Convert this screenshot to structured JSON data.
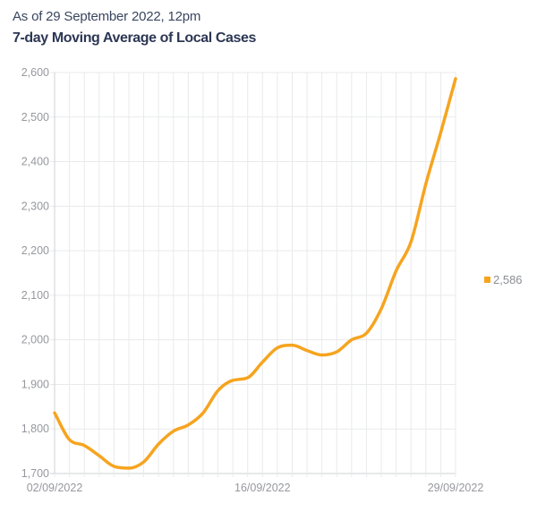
{
  "header": {
    "as_of": "As of 29 September 2022, 12pm",
    "title": "7-day Moving Average of Local Cases"
  },
  "legend": {
    "label": "2,586",
    "swatch_color": "#F6A41F"
  },
  "colors": {
    "line": "#F6A41F",
    "grid": "#e9eaeb",
    "axis": "#cdd0d4",
    "tick_label": "#96989d",
    "legend_text": "#8b8e93",
    "header_text": "#3a465f",
    "title_text": "#2c3754",
    "background": "#ffffff"
  },
  "chart_data": {
    "type": "line",
    "title": "7-day Moving Average of Local Cases",
    "series_name": "7-day Moving Average of Local Cases",
    "x": [
      "02/09/2022",
      "03/09/2022",
      "04/09/2022",
      "05/09/2022",
      "06/09/2022",
      "07/09/2022",
      "08/09/2022",
      "09/09/2022",
      "10/09/2022",
      "11/09/2022",
      "12/09/2022",
      "13/09/2022",
      "14/09/2022",
      "15/09/2022",
      "16/09/2022",
      "17/09/2022",
      "18/09/2022",
      "19/09/2022",
      "20/09/2022",
      "21/09/2022",
      "22/09/2022",
      "23/09/2022",
      "24/09/2022",
      "25/09/2022",
      "26/09/2022",
      "27/09/2022",
      "28/09/2022",
      "29/09/2022"
    ],
    "values": [
      1836,
      1776,
      1763,
      1740,
      1716,
      1712,
      1726,
      1766,
      1795,
      1809,
      1836,
      1886,
      1909,
      1915,
      1950,
      1982,
      1988,
      1976,
      1966,
      1973,
      2000,
      2015,
      2070,
      2155,
      2220,
      2350,
      2465,
      2586
    ],
    "last_value": 2586,
    "xlabel": "",
    "ylabel": "",
    "ylim": [
      1700,
      2600
    ],
    "y_tick_step": 100,
    "y_tick_labels": [
      "1,700",
      "1,800",
      "1,900",
      "2,000",
      "2,100",
      "2,200",
      "2,300",
      "2,400",
      "2,500",
      "2,600"
    ],
    "x_tick_indices": [
      0,
      14,
      27
    ],
    "grid": true,
    "smooth": true,
    "legend_position": "right"
  }
}
